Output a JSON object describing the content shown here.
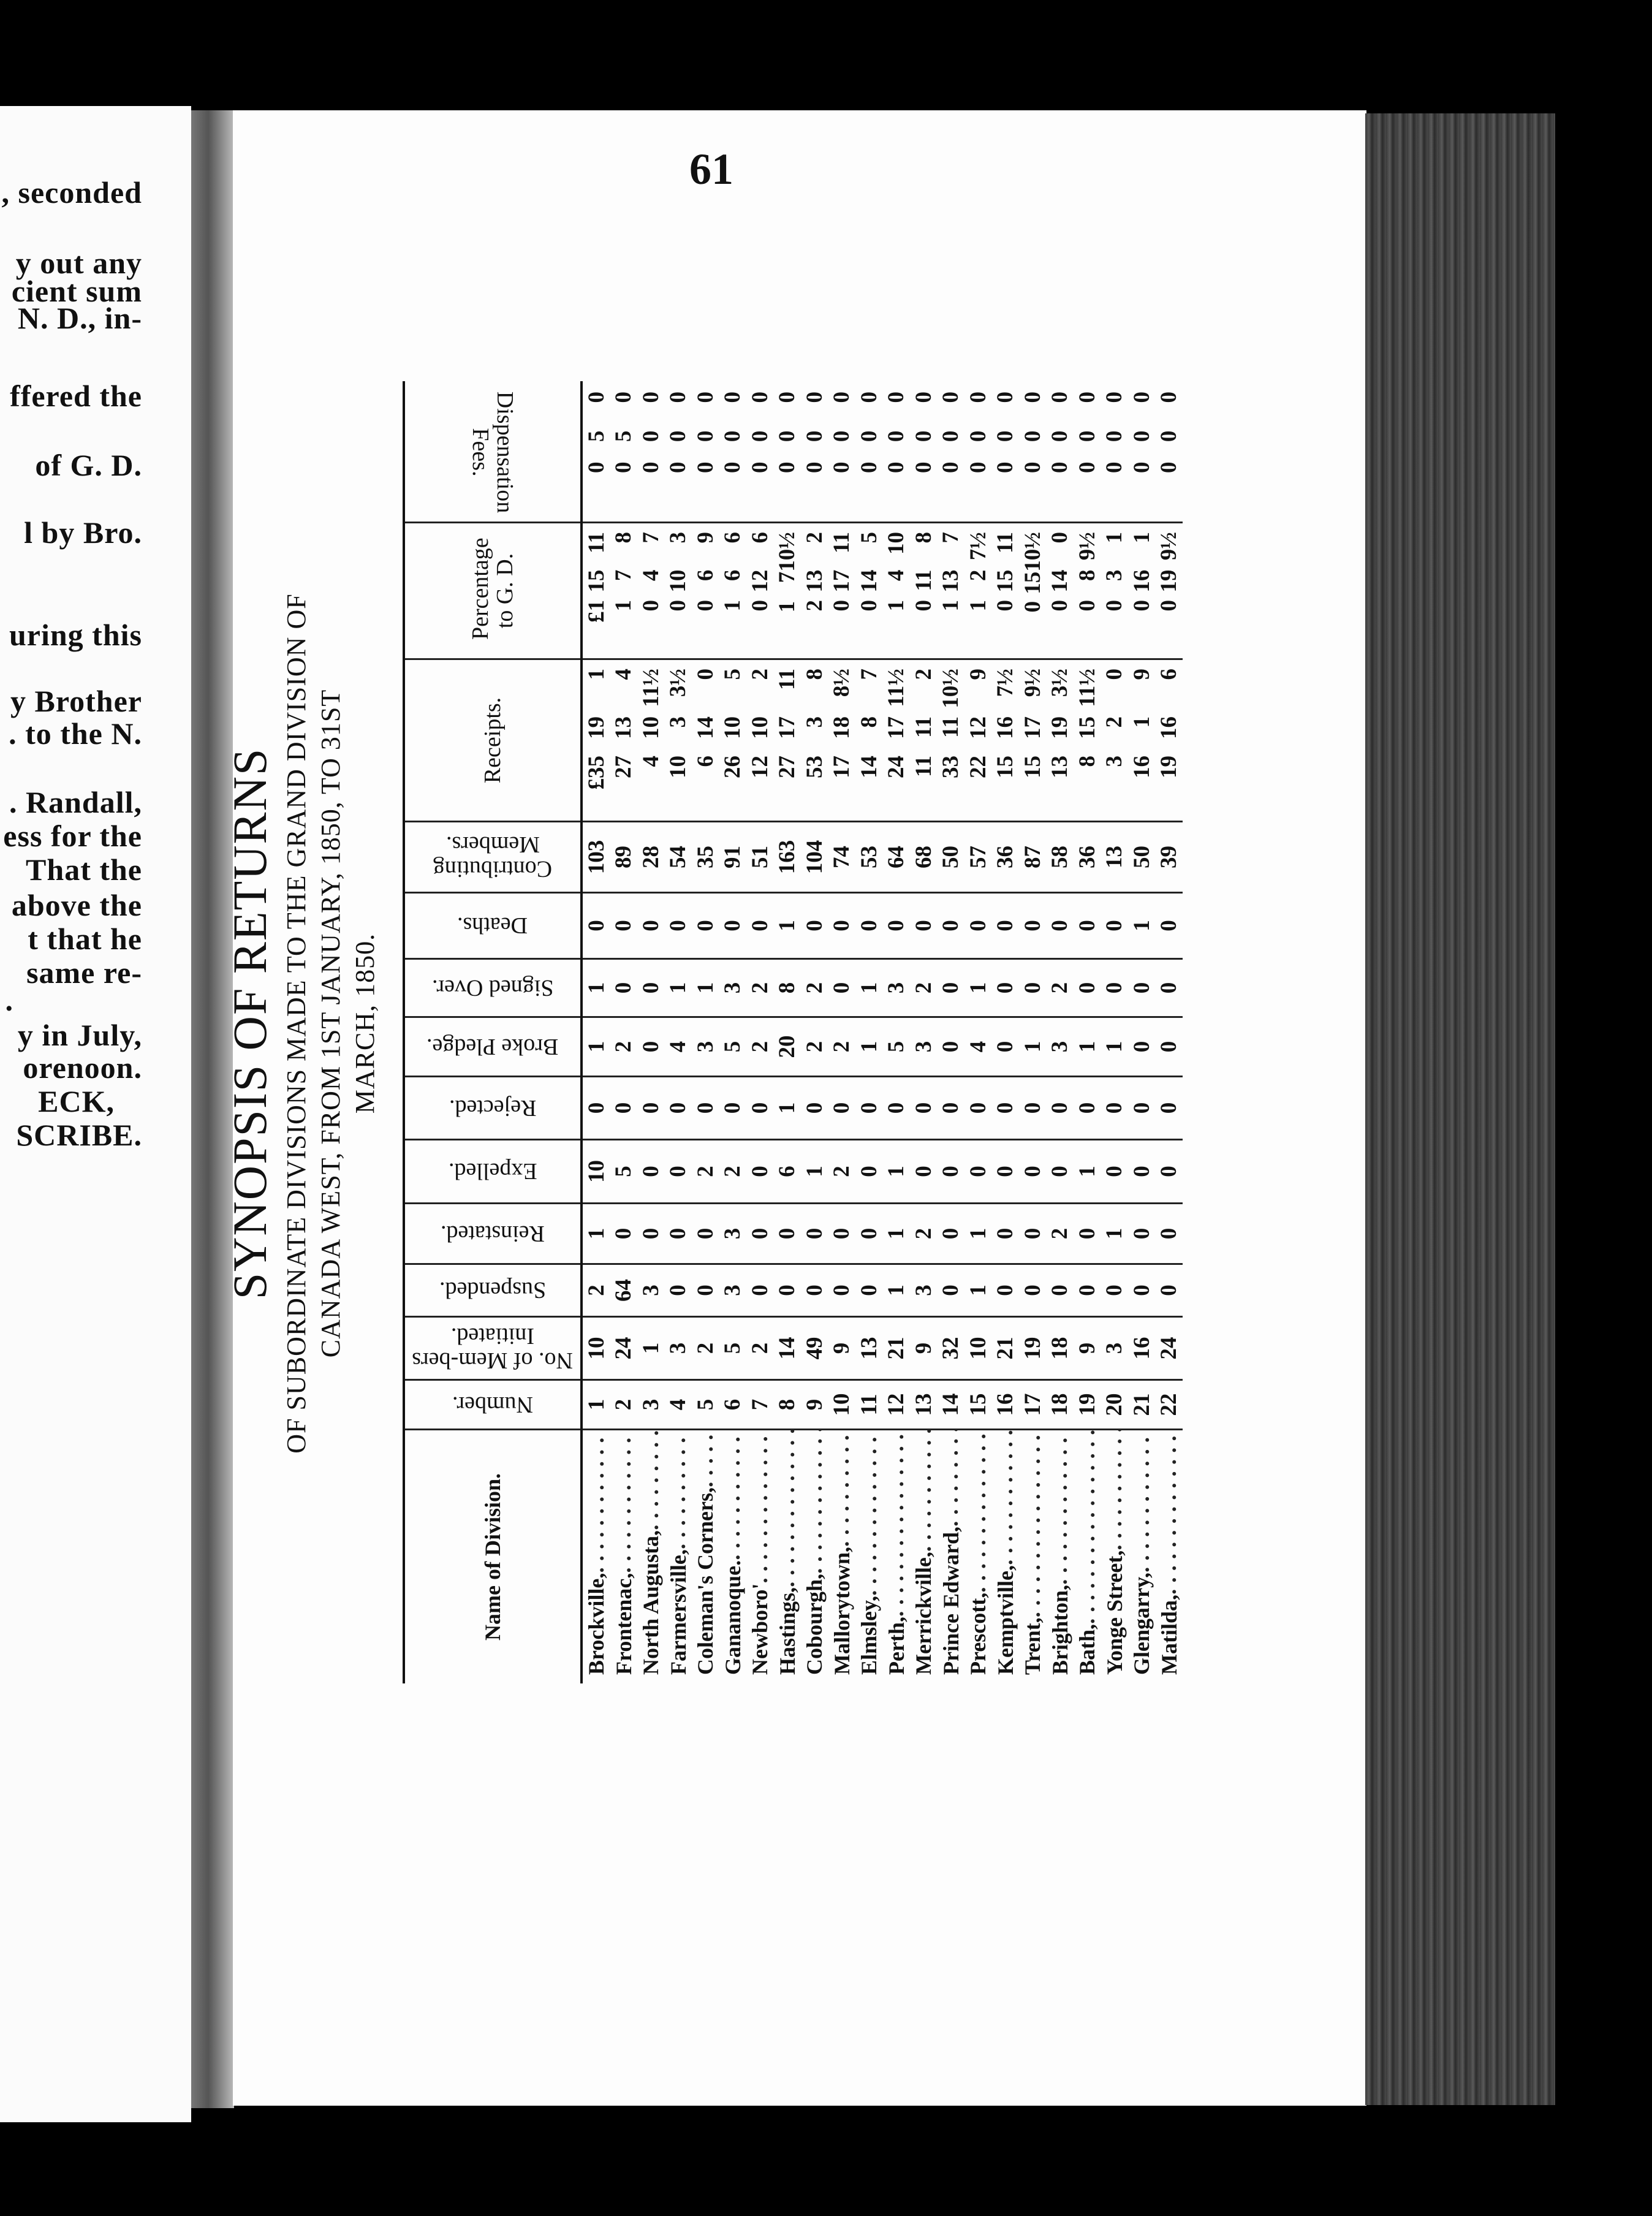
{
  "left_page": {
    "lines": [
      ", seconded",
      "y out any",
      "cient sum",
      "N. D., in-",
      "ffered the",
      "of  G. D.",
      "l  by Bro.",
      "uring  this",
      "y Brother",
      ". to the N.",
      ". Randall,",
      "ess for the",
      "That the",
      "above the",
      "t  that he",
      "same re-",
      ".",
      "y in July,",
      "orenoon.",
      "ECK,",
      "SCRIBE."
    ]
  },
  "page_number": "61",
  "title": "SYNOPSIS OF RETURNS",
  "subtitle_lines": [
    "OF SUBORDINATE DIVISIONS MADE TO THE GRAND DIVISION OF",
    "CANADA WEST, FROM 1ST JANUARY, 1850, TO 31ST",
    "MARCH, 1850."
  ],
  "table": {
    "headers": {
      "name": "Name of Division.",
      "number": "Number.",
      "initiated": "No. of Mem-bers Initiated.",
      "suspended": "Suspended.",
      "reinstated": "Reinstated.",
      "expelled": "Expelled.",
      "rejected": "Rejected.",
      "broke_pledge": "Broke Pledge.",
      "signed_over": "Signed Over.",
      "deaths": "Deaths.",
      "contributing": "Contributing Members.",
      "receipts": "Receipts.",
      "percentage": "Percentage to G. D.",
      "fees": "Dispensation Fees."
    },
    "rows": [
      {
        "name": "Brockville,",
        "number": "1",
        "initiated": "10",
        "suspended": "2",
        "reinstated": "1",
        "expelled": "10",
        "rejected": "0",
        "broke_pledge": "1",
        "signed_over": "1",
        "deaths": "0",
        "contributing": "103",
        "receipts": [
          "£35",
          "19",
          "1"
        ],
        "percentage": [
          "£1",
          "15",
          "11"
        ],
        "fees": [
          "0",
          "5",
          "0"
        ]
      },
      {
        "name": "Frontenac,",
        "number": "2",
        "initiated": "24",
        "suspended": "64",
        "reinstated": "0",
        "expelled": "5",
        "rejected": "0",
        "broke_pledge": "2",
        "signed_over": "0",
        "deaths": "0",
        "contributing": "89",
        "receipts": [
          "27",
          "13",
          "4"
        ],
        "percentage": [
          "1",
          "7",
          "8"
        ],
        "fees": [
          "0",
          "5",
          "0"
        ]
      },
      {
        "name": "North Augusta,",
        "number": "3",
        "initiated": "1",
        "suspended": "3",
        "reinstated": "0",
        "expelled": "0",
        "rejected": "0",
        "broke_pledge": "0",
        "signed_over": "0",
        "deaths": "0",
        "contributing": "28",
        "receipts": [
          "4",
          "10",
          "11½"
        ],
        "percentage": [
          "0",
          "4",
          "7"
        ],
        "fees": [
          "0",
          "0",
          "0"
        ]
      },
      {
        "name": "Farmersville,",
        "number": "4",
        "initiated": "3",
        "suspended": "0",
        "reinstated": "0",
        "expelled": "0",
        "rejected": "0",
        "broke_pledge": "4",
        "signed_over": "1",
        "deaths": "0",
        "contributing": "54",
        "receipts": [
          "10",
          "3",
          "3½"
        ],
        "percentage": [
          "0",
          "10",
          "3"
        ],
        "fees": [
          "0",
          "0",
          "0"
        ]
      },
      {
        "name": "Coleman's Corners,",
        "number": "5",
        "initiated": "2",
        "suspended": "0",
        "reinstated": "0",
        "expelled": "2",
        "rejected": "0",
        "broke_pledge": "3",
        "signed_over": "1",
        "deaths": "0",
        "contributing": "35",
        "receipts": [
          "6",
          "14",
          "0"
        ],
        "percentage": [
          "0",
          "6",
          "9"
        ],
        "fees": [
          "0",
          "0",
          "0"
        ]
      },
      {
        "name": "Gananoque.",
        "number": "6",
        "initiated": "5",
        "suspended": "3",
        "reinstated": "3",
        "expelled": "2",
        "rejected": "0",
        "broke_pledge": "5",
        "signed_over": "3",
        "deaths": "0",
        "contributing": "91",
        "receipts": [
          "26",
          "10",
          "5"
        ],
        "percentage": [
          "1",
          "6",
          "6"
        ],
        "fees": [
          "0",
          "0",
          "0"
        ]
      },
      {
        "name": "Newboro'",
        "number": "7",
        "initiated": "2",
        "suspended": "0",
        "reinstated": "0",
        "expelled": "0",
        "rejected": "0",
        "broke_pledge": "2",
        "signed_over": "2",
        "deaths": "0",
        "contributing": "51",
        "receipts": [
          "12",
          "10",
          "2"
        ],
        "percentage": [
          "0",
          "12",
          "6"
        ],
        "fees": [
          "0",
          "0",
          "0"
        ]
      },
      {
        "name": "Hastings,",
        "number": "8",
        "initiated": "14",
        "suspended": "0",
        "reinstated": "0",
        "expelled": "6",
        "rejected": "1",
        "broke_pledge": "20",
        "signed_over": "8",
        "deaths": "1",
        "contributing": "163",
        "receipts": [
          "27",
          "17",
          "11"
        ],
        "percentage": [
          "1",
          "7",
          "10½"
        ],
        "fees": [
          "0",
          "0",
          "0"
        ]
      },
      {
        "name": "Cobourgh,",
        "number": "9",
        "initiated": "49",
        "suspended": "0",
        "reinstated": "0",
        "expelled": "1",
        "rejected": "0",
        "broke_pledge": "2",
        "signed_over": "2",
        "deaths": "0",
        "contributing": "104",
        "receipts": [
          "53",
          "3",
          "8"
        ],
        "percentage": [
          "2",
          "13",
          "2"
        ],
        "fees": [
          "0",
          "0",
          "0"
        ]
      },
      {
        "name": "Mallorytown,",
        "number": "10",
        "initiated": "9",
        "suspended": "0",
        "reinstated": "0",
        "expelled": "2",
        "rejected": "0",
        "broke_pledge": "2",
        "signed_over": "0",
        "deaths": "0",
        "contributing": "74",
        "receipts": [
          "17",
          "18",
          "8½"
        ],
        "percentage": [
          "0",
          "17",
          "11"
        ],
        "fees": [
          "0",
          "0",
          "0"
        ]
      },
      {
        "name": "Elmsley,",
        "number": "11",
        "initiated": "13",
        "suspended": "0",
        "reinstated": "0",
        "expelled": "0",
        "rejected": "0",
        "broke_pledge": "1",
        "signed_over": "1",
        "deaths": "0",
        "contributing": "53",
        "receipts": [
          "14",
          "8",
          "7"
        ],
        "percentage": [
          "0",
          "14",
          "5"
        ],
        "fees": [
          "0",
          "0",
          "0"
        ]
      },
      {
        "name": "Perth,",
        "number": "12",
        "initiated": "21",
        "suspended": "1",
        "reinstated": "1",
        "expelled": "1",
        "rejected": "0",
        "broke_pledge": "5",
        "signed_over": "3",
        "deaths": "0",
        "contributing": "64",
        "receipts": [
          "24",
          "17",
          "11½"
        ],
        "percentage": [
          "1",
          "4",
          "10"
        ],
        "fees": [
          "0",
          "0",
          "0"
        ]
      },
      {
        "name": "Merrickville,",
        "number": "13",
        "initiated": "9",
        "suspended": "3",
        "reinstated": "2",
        "expelled": "0",
        "rejected": "0",
        "broke_pledge": "3",
        "signed_over": "2",
        "deaths": "0",
        "contributing": "68",
        "receipts": [
          "11",
          "11",
          "2"
        ],
        "percentage": [
          "0",
          "11",
          "8"
        ],
        "fees": [
          "0",
          "0",
          "0"
        ]
      },
      {
        "name": "Prince Edward,",
        "number": "14",
        "initiated": "32",
        "suspended": "0",
        "reinstated": "0",
        "expelled": "0",
        "rejected": "0",
        "broke_pledge": "0",
        "signed_over": "0",
        "deaths": "0",
        "contributing": "50",
        "receipts": [
          "33",
          "11",
          "10½"
        ],
        "percentage": [
          "1",
          "13",
          "7"
        ],
        "fees": [
          "0",
          "0",
          "0"
        ]
      },
      {
        "name": "Prescott,",
        "number": "15",
        "initiated": "10",
        "suspended": "1",
        "reinstated": "1",
        "expelled": "0",
        "rejected": "0",
        "broke_pledge": "4",
        "signed_over": "1",
        "deaths": "0",
        "contributing": "57",
        "receipts": [
          "22",
          "12",
          "9"
        ],
        "percentage": [
          "1",
          "2",
          "7½"
        ],
        "fees": [
          "0",
          "0",
          "0"
        ]
      },
      {
        "name": "Kemptville,",
        "number": "16",
        "initiated": "21",
        "suspended": "0",
        "reinstated": "0",
        "expelled": "0",
        "rejected": "0",
        "broke_pledge": "0",
        "signed_over": "0",
        "deaths": "0",
        "contributing": "36",
        "receipts": [
          "15",
          "16",
          "7½"
        ],
        "percentage": [
          "0",
          "15",
          "11"
        ],
        "fees": [
          "0",
          "0",
          "0"
        ]
      },
      {
        "name": "Trent,",
        "number": "17",
        "initiated": "19",
        "suspended": "0",
        "reinstated": "0",
        "expelled": "0",
        "rejected": "0",
        "broke_pledge": "1",
        "signed_over": "0",
        "deaths": "0",
        "contributing": "87",
        "receipts": [
          "15",
          "17",
          "9½"
        ],
        "percentage": [
          "0",
          "15",
          "10½"
        ],
        "fees": [
          "0",
          "0",
          "0"
        ]
      },
      {
        "name": "Brighton,",
        "number": "18",
        "initiated": "18",
        "suspended": "0",
        "reinstated": "2",
        "expelled": "0",
        "rejected": "0",
        "broke_pledge": "3",
        "signed_over": "2",
        "deaths": "0",
        "contributing": "58",
        "receipts": [
          "13",
          "19",
          "3½"
        ],
        "percentage": [
          "0",
          "14",
          "0"
        ],
        "fees": [
          "0",
          "0",
          "0"
        ]
      },
      {
        "name": "Bath,",
        "number": "19",
        "initiated": "9",
        "suspended": "0",
        "reinstated": "0",
        "expelled": "1",
        "rejected": "0",
        "broke_pledge": "1",
        "signed_over": "0",
        "deaths": "0",
        "contributing": "36",
        "receipts": [
          "8",
          "15",
          "11½"
        ],
        "percentage": [
          "0",
          "8",
          "9½"
        ],
        "fees": [
          "0",
          "0",
          "0"
        ]
      },
      {
        "name": "Yonge Street,",
        "number": "20",
        "initiated": "3",
        "suspended": "0",
        "reinstated": "1",
        "expelled": "0",
        "rejected": "0",
        "broke_pledge": "1",
        "signed_over": "0",
        "deaths": "0",
        "contributing": "13",
        "receipts": [
          "3",
          "2",
          "0"
        ],
        "percentage": [
          "0",
          "3",
          "1"
        ],
        "fees": [
          "0",
          "0",
          "0"
        ]
      },
      {
        "name": "Glengarry,",
        "number": "21",
        "initiated": "16",
        "suspended": "0",
        "reinstated": "0",
        "expelled": "0",
        "rejected": "0",
        "broke_pledge": "0",
        "signed_over": "0",
        "deaths": "1",
        "contributing": "50",
        "receipts": [
          "16",
          "1",
          "9"
        ],
        "percentage": [
          "0",
          "16",
          "1"
        ],
        "fees": [
          "0",
          "0",
          "0"
        ]
      },
      {
        "name": "Matilda,",
        "number": "22",
        "initiated": "24",
        "suspended": "0",
        "reinstated": "0",
        "expelled": "0",
        "rejected": "0",
        "broke_pledge": "0",
        "signed_over": "0",
        "deaths": "0",
        "contributing": "39",
        "receipts": [
          "19",
          "16",
          "6"
        ],
        "percentage": [
          "0",
          "19",
          "9½"
        ],
        "fees": [
          "0",
          "0",
          "0"
        ]
      }
    ]
  }
}
